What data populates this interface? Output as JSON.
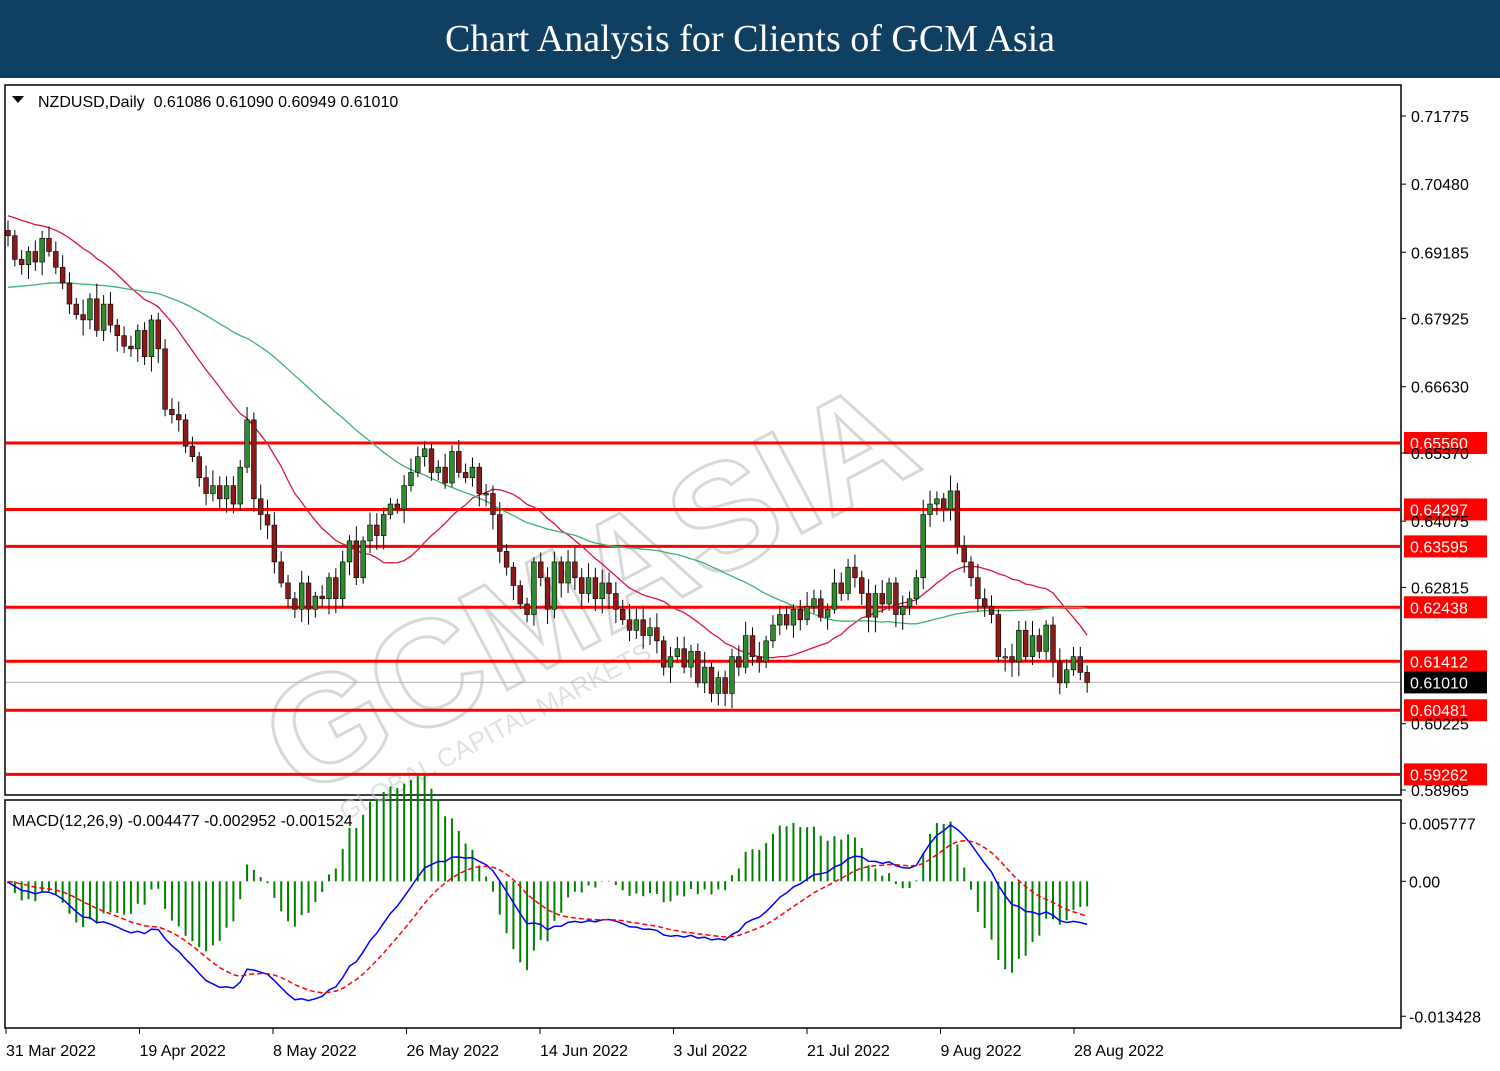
{
  "banner_title": "Chart Analysis for Clients of GCM Asia",
  "chart_data": {
    "type": "candlestick",
    "symbol_header": "NZDUSD,Daily  0.61086 0.61090 0.60949 0.61010",
    "watermark": "GCMASIA",
    "watermark_sub": "GLOBAL CAPITAL MARKETS",
    "y_range": [
      0.58965,
      0.723
    ],
    "y_ticks": [
      "0.71775",
      "0.70480",
      "0.69185",
      "0.67925",
      "0.66630",
      "0.65370",
      "0.64075",
      "0.62815",
      "0.60225",
      "0.58965"
    ],
    "x_labels": [
      "31 Mar 2022",
      "19 Apr 2022",
      "8 May 2022",
      "26 May 2022",
      "14 Jun 2022",
      "3 Jul 2022",
      "21 Jul 2022",
      "9 Aug 2022",
      "28 Aug 2022"
    ],
    "current_price": "0.61010",
    "levels": [
      {
        "value": 0.6556,
        "label": "0.65560"
      },
      {
        "value": 0.64297,
        "label": "0.64297"
      },
      {
        "value": 0.63595,
        "label": "0.63595"
      },
      {
        "value": 0.62438,
        "label": "0.62438"
      },
      {
        "value": 0.61412,
        "label": "0.61412"
      },
      {
        "value": 0.60481,
        "label": "0.60481"
      },
      {
        "value": 0.59262,
        "label": "0.59262"
      }
    ],
    "level_color": "#ff0000",
    "ma_fast_color": "#dc143c",
    "ma_slow_color": "#3cb371",
    "candle_up_color": "#2e8b2e",
    "candle_down_color": "#8b1a1a",
    "closes": [
      0.695,
      0.6905,
      0.6895,
      0.692,
      0.69,
      0.6945,
      0.692,
      0.689,
      0.686,
      0.682,
      0.68,
      0.679,
      0.683,
      0.677,
      0.682,
      0.678,
      0.676,
      0.674,
      0.6735,
      0.677,
      0.672,
      0.679,
      0.6735,
      0.662,
      0.661,
      0.66,
      0.655,
      0.653,
      0.649,
      0.646,
      0.6475,
      0.645,
      0.6475,
      0.644,
      0.651,
      0.66,
      0.645,
      0.642,
      0.64,
      0.633,
      0.629,
      0.626,
      0.624,
      0.629,
      0.624,
      0.6265,
      0.626,
      0.63,
      0.626,
      0.633,
      0.637,
      0.63,
      0.637,
      0.64,
      0.638,
      0.642,
      0.644,
      0.643,
      0.6475,
      0.65,
      0.653,
      0.6545,
      0.65,
      0.651,
      0.648,
      0.654,
      0.65,
      0.649,
      0.651,
      0.646,
      0.646,
      0.642,
      0.635,
      0.632,
      0.6285,
      0.625,
      0.623,
      0.633,
      0.63,
      0.624,
      0.633,
      0.629,
      0.633,
      0.63,
      0.627,
      0.63,
      0.626,
      0.629,
      0.627,
      0.624,
      0.622,
      0.62,
      0.622,
      0.619,
      0.6205,
      0.618,
      0.613,
      0.615,
      0.6165,
      0.613,
      0.616,
      0.61,
      0.613,
      0.608,
      0.611,
      0.608,
      0.615,
      0.613,
      0.619,
      0.615,
      0.614,
      0.618,
      0.621,
      0.623,
      0.621,
      0.624,
      0.622,
      0.6245,
      0.626,
      0.6225,
      0.624,
      0.629,
      0.627,
      0.632,
      0.63,
      0.627,
      0.6225,
      0.627,
      0.625,
      0.629,
      0.623,
      0.6245,
      0.626,
      0.63,
      0.642,
      0.644,
      0.645,
      0.643,
      0.6465,
      0.636,
      0.633,
      0.63,
      0.626,
      0.6245,
      0.623,
      0.615,
      0.615,
      0.614,
      0.62,
      0.615,
      0.619,
      0.616,
      0.621,
      0.614,
      0.61,
      0.6125,
      0.615,
      0.612,
      0.6101
    ],
    "macd": {
      "header": "MACD(12,26,9) -0.004477 -0.002952 -0.001524",
      "y_range": [
        -0.014,
        0.0065
      ],
      "y_ticks": [
        "0.005777",
        "0.00",
        "-0.013428"
      ],
      "main_color": "#0000ff",
      "signal_color": "#ff0000",
      "histogram_color": "#008000"
    }
  }
}
